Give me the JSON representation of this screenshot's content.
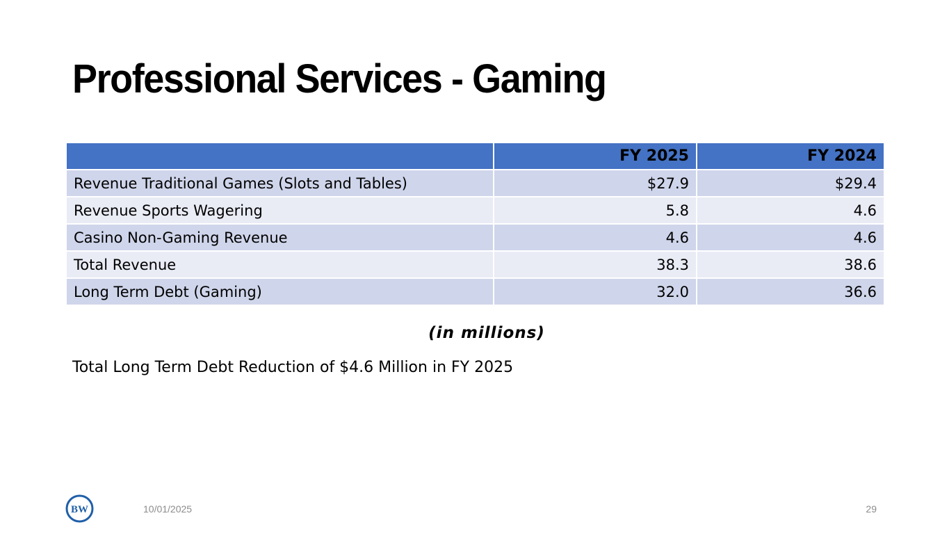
{
  "slide": {
    "title": "Professional Services - Gaming",
    "units_note": "(in millions)",
    "summary": "Total Long Term Debt Reduction of $4.6 Million in FY 2025",
    "date": "10/01/2025",
    "page_number": "29",
    "logo_text": "BW"
  },
  "table": {
    "headers": [
      "",
      "FY 2025",
      "FY 2024"
    ],
    "rows": [
      {
        "label": "Revenue Traditional Games (Slots and Tables)",
        "fy2025": "$27.9",
        "fy2024": "$29.4"
      },
      {
        "label": "Revenue Sports Wagering",
        "fy2025": "5.8",
        "fy2024": "4.6"
      },
      {
        "label": "Casino Non-Gaming Revenue",
        "fy2025": "4.6",
        "fy2024": "4.6"
      },
      {
        "label": "Total Revenue",
        "fy2025": "38.3",
        "fy2024": "38.6"
      },
      {
        "label": "Long Term Debt (Gaming)",
        "fy2025": "32.0",
        "fy2024": "36.6"
      }
    ]
  },
  "colors": {
    "header_bg": "#4472c4",
    "row_odd": "#cfd5ea",
    "row_even": "#e9ebf5",
    "logo_blue": "#1f5fa8"
  }
}
